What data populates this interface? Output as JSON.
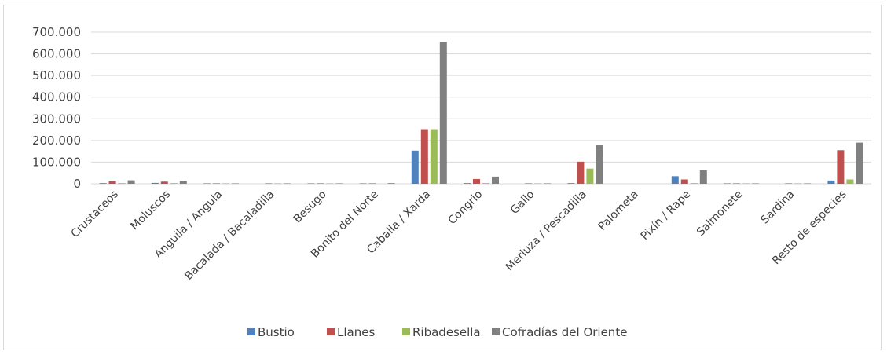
{
  "chart_data": {
    "type": "bar",
    "categories": [
      "Crustáceos",
      "Moluscos",
      "Anguila / Angula",
      "Bacalada / Bacaladilla",
      "Besugo",
      "Bonito del Norte",
      "Caballa / Xarda",
      "Congrio",
      "Gallo",
      "Merluza / Pescadilla",
      "Palometa",
      "Pixín / Rape",
      "Salmonete",
      "Sardina",
      "Resto de especies"
    ],
    "series": [
      {
        "name": "Bustio",
        "color": "#4f81bd",
        "values": [
          3000,
          4000,
          2000,
          0,
          2000,
          2000,
          153000,
          3000,
          0,
          3000,
          0,
          35000,
          2000,
          0,
          15000
        ]
      },
      {
        "name": "Llanes",
        "color": "#c0504d",
        "values": [
          12000,
          10000,
          2000,
          2000,
          2000,
          2000,
          252000,
          22000,
          2000,
          102000,
          0,
          20000,
          2000,
          2000,
          155000
        ]
      },
      {
        "name": "Ribadesella",
        "color": "#9bbb59",
        "values": [
          3000,
          3000,
          2000,
          2000,
          2000,
          0,
          252000,
          3000,
          2000,
          70000,
          0,
          3000,
          2000,
          2000,
          20000
        ]
      },
      {
        "name": "Cofradías del Oriente",
        "color": "#808080",
        "values": [
          16000,
          12000,
          2000,
          2000,
          2000,
          3000,
          655000,
          33000,
          2000,
          180000,
          0,
          62000,
          2000,
          2000,
          190000
        ]
      }
    ],
    "yticks": [
      0,
      100000,
      200000,
      300000,
      400000,
      500000,
      600000,
      700000
    ],
    "ytick_labels": [
      "0",
      "100.000",
      "200.000",
      "300.000",
      "400.000",
      "500.000",
      "600.000",
      "700.000"
    ],
    "ylim": [
      0,
      700000
    ],
    "grid": true,
    "legend_position": "bottom"
  }
}
